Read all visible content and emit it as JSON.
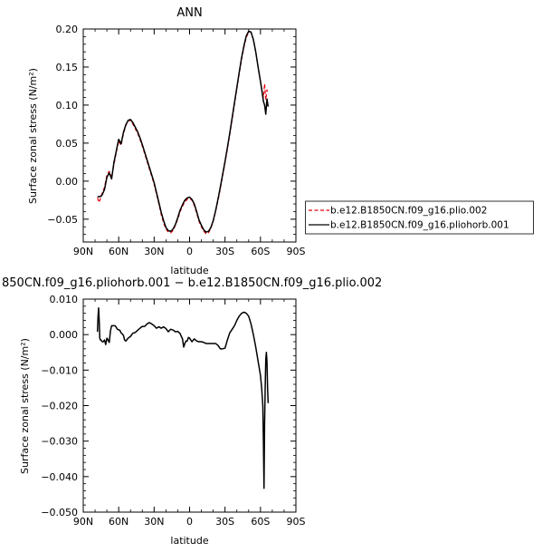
{
  "chart_data": [
    {
      "type": "line",
      "title": "ANN",
      "xlabel": "latitude",
      "ylabel": "Surface zonal stress (N/m²)",
      "xlim": [
        -90,
        90
      ],
      "ylim": [
        -0.08,
        0.2
      ],
      "xticks": [
        {
          "value": -90,
          "label": "90N"
        },
        {
          "value": -60,
          "label": "60N"
        },
        {
          "value": -30,
          "label": "30N"
        },
        {
          "value": 0,
          "label": "0"
        },
        {
          "value": 30,
          "label": "30S"
        },
        {
          "value": 60,
          "label": "60S"
        },
        {
          "value": 90,
          "label": "90S"
        }
      ],
      "yticks": [
        {
          "value": -0.05,
          "label": "−0.05"
        },
        {
          "value": 0.0,
          "label": "0.00"
        },
        {
          "value": 0.05,
          "label": "0.05"
        },
        {
          "value": 0.1,
          "label": "0.10"
        },
        {
          "value": 0.15,
          "label": "0.15"
        },
        {
          "value": 0.2,
          "label": "0.20"
        }
      ],
      "legend_position": "right",
      "series": [
        {
          "name": "b.e12.B1850CN.f09_g16.plio.002",
          "color": "#e8000b",
          "dash": "dashed",
          "x": [
            -78,
            -76.5,
            -75,
            -74,
            -72,
            -70,
            -68,
            -66,
            -64,
            -62,
            -60,
            -58,
            -56,
            -54,
            -52,
            -50,
            -48,
            -46,
            -44,
            -42,
            -40,
            -38,
            -36,
            -34,
            -32,
            -30,
            -28,
            -26,
            -24,
            -22,
            -20,
            -18,
            -16,
            -14,
            -12,
            -10,
            -8,
            -6,
            -4,
            -2,
            0,
            2,
            4,
            6,
            8,
            10,
            12,
            14,
            16,
            18,
            20,
            22,
            24,
            26,
            28,
            30,
            32,
            34,
            36,
            38,
            40,
            42,
            44,
            46,
            48,
            50,
            52,
            54,
            56,
            58,
            60,
            61.5,
            62.5,
            63.5,
            64.5,
            65.5,
            66.5
          ],
          "y": [
            -0.022,
            -0.028,
            -0.02,
            -0.016,
            -0.008,
            0.008,
            0.013,
            0.005,
            0.022,
            0.038,
            0.053,
            0.047,
            0.062,
            0.073,
            0.079,
            0.08,
            0.075,
            0.069,
            0.063,
            0.055,
            0.046,
            0.036,
            0.026,
            0.016,
            0.006,
            -0.004,
            -0.017,
            -0.03,
            -0.044,
            -0.055,
            -0.063,
            -0.067,
            -0.068,
            -0.065,
            -0.058,
            -0.05,
            -0.04,
            -0.033,
            -0.027,
            -0.024,
            -0.023,
            -0.025,
            -0.032,
            -0.042,
            -0.053,
            -0.06,
            -0.066,
            -0.069,
            -0.068,
            -0.062,
            -0.053,
            -0.04,
            -0.026,
            -0.01,
            0.007,
            0.024,
            0.042,
            0.061,
            0.081,
            0.101,
            0.121,
            0.141,
            0.16,
            0.176,
            0.189,
            0.196,
            0.196,
            0.186,
            0.17,
            0.15,
            0.132,
            0.118,
            0.11,
            0.128,
            0.107,
            0.12,
            0.115
          ]
        },
        {
          "name": "b.e12.B1850CN.f09_g16.pliohorb.001",
          "color": "#000000",
          "dash": "solid",
          "x": [
            -78,
            -76.5,
            -75,
            -74,
            -72,
            -70,
            -68,
            -66,
            -64,
            -62,
            -60,
            -58,
            -56,
            -54,
            -52,
            -50,
            -48,
            -46,
            -44,
            -42,
            -40,
            -38,
            -36,
            -34,
            -32,
            -30,
            -28,
            -26,
            -24,
            -22,
            -20,
            -18,
            -16,
            -14,
            -12,
            -10,
            -8,
            -6,
            -4,
            -2,
            0,
            2,
            4,
            6,
            8,
            10,
            12,
            14,
            16,
            18,
            20,
            22,
            24,
            26,
            28,
            30,
            32,
            34,
            36,
            38,
            40,
            42,
            44,
            46,
            48,
            50,
            52,
            54,
            56,
            58,
            60,
            61.5,
            62.5,
            63.5,
            64.5,
            65.5,
            66.5
          ],
          "y": [
            -0.021,
            -0.02,
            -0.02,
            -0.018,
            -0.011,
            0.005,
            0.011,
            0.003,
            0.025,
            0.04,
            0.055,
            0.049,
            0.064,
            0.074,
            0.08,
            0.081,
            0.077,
            0.071,
            0.065,
            0.057,
            0.048,
            0.038,
            0.028,
            0.018,
            0.008,
            -0.002,
            -0.015,
            -0.028,
            -0.041,
            -0.052,
            -0.061,
            -0.065,
            -0.066,
            -0.063,
            -0.057,
            -0.048,
            -0.038,
            -0.031,
            -0.025,
            -0.022,
            -0.021,
            -0.024,
            -0.03,
            -0.04,
            -0.051,
            -0.058,
            -0.064,
            -0.067,
            -0.066,
            -0.061,
            -0.052,
            -0.039,
            -0.024,
            -0.008,
            0.009,
            0.026,
            0.044,
            0.063,
            0.083,
            0.103,
            0.123,
            0.143,
            0.162,
            0.178,
            0.191,
            0.197,
            0.196,
            0.186,
            0.17,
            0.15,
            0.131,
            0.116,
            0.105,
            0.1,
            0.088,
            0.108,
            0.098
          ]
        }
      ]
    },
    {
      "type": "line",
      "title": "850CN.f09_g16.pliohorb.001 − b.e12.B1850CN.f09_g16.plio.002",
      "xlabel": "latitude",
      "ylabel": "Surface zonal stress (N/m²)",
      "xlim": [
        -90,
        90
      ],
      "ylim": [
        -0.05,
        0.01
      ],
      "xticks": [
        {
          "value": -90,
          "label": "90N"
        },
        {
          "value": -60,
          "label": "60N"
        },
        {
          "value": -30,
          "label": "30N"
        },
        {
          "value": 0,
          "label": "0"
        },
        {
          "value": 30,
          "label": "30S"
        },
        {
          "value": 60,
          "label": "60S"
        },
        {
          "value": 90,
          "label": "90S"
        }
      ],
      "yticks": [
        {
          "value": -0.05,
          "label": "−0.050"
        },
        {
          "value": -0.04,
          "label": "−0.040"
        },
        {
          "value": -0.03,
          "label": "−0.030"
        },
        {
          "value": -0.02,
          "label": "−0.020"
        },
        {
          "value": -0.01,
          "label": "−0.010"
        },
        {
          "value": 0.0,
          "label": "0.000"
        },
        {
          "value": 0.01,
          "label": "0.010"
        }
      ],
      "series": [
        {
          "color": "#000000",
          "dash": "solid",
          "x": [
            -78,
            -77.5,
            -77,
            -76.5,
            -76,
            -75.5,
            -75,
            -74,
            -73,
            -72,
            -71,
            -70.5,
            -70,
            -69,
            -68,
            -67,
            -66,
            -65,
            -63,
            -61,
            -59,
            -58,
            -57,
            -56,
            -55,
            -54,
            -52,
            -50,
            -48,
            -46,
            -44,
            -42,
            -40,
            -38,
            -36,
            -34,
            -32,
            -30,
            -28,
            -26,
            -24,
            -22,
            -20,
            -18,
            -16,
            -14,
            -12,
            -10,
            -8,
            -7,
            -6,
            -5,
            -4,
            -3,
            -2,
            -1,
            0,
            2,
            4,
            6,
            8,
            10,
            12,
            14,
            16,
            18,
            20,
            22,
            24,
            26,
            28,
            30,
            32,
            34,
            36,
            38,
            40,
            42,
            44,
            46,
            47,
            48,
            50,
            52,
            54,
            56,
            58,
            60,
            61,
            62,
            62.5,
            63,
            63.5,
            64,
            64.5,
            65,
            65.5,
            66,
            66.5
          ],
          "y": [
            0.0008,
            0.005,
            0.0075,
            0.004,
            -0.001,
            -0.0015,
            -0.0015,
            -0.002,
            -0.002,
            -0.0015,
            -0.0028,
            -0.002,
            -0.001,
            -0.0015,
            -0.0022,
            0.001,
            0.0025,
            0.0025,
            0.0025,
            0.0015,
            0.0012,
            0.0005,
            0.0002,
            -0.0002,
            -0.0015,
            -0.0018,
            -0.001,
            -0.0005,
            0.0004,
            0.0006,
            0.0012,
            0.0018,
            0.0023,
            0.0023,
            0.003,
            0.0034,
            0.003,
            0.0025,
            0.0018,
            0.0022,
            0.0018,
            0.0022,
            0.0017,
            0.0008,
            0.0015,
            0.0013,
            0.0008,
            0.0009,
            0.0003,
            -0.0005,
            -0.0012,
            -0.0035,
            -0.0025,
            -0.0018,
            -0.0018,
            -0.0008,
            -0.001,
            -0.002,
            -0.0012,
            -0.0018,
            -0.002,
            -0.002,
            -0.0022,
            -0.0025,
            -0.0025,
            -0.0025,
            -0.0025,
            -0.0025,
            -0.003,
            -0.004,
            -0.004,
            -0.0038,
            -0.0015,
            0.0005,
            0.0015,
            0.0025,
            0.004,
            0.0052,
            0.006,
            0.0063,
            0.0062,
            0.006,
            0.0052,
            0.003,
            0,
            -0.0035,
            -0.0075,
            -0.0115,
            -0.015,
            -0.02,
            -0.03,
            -0.0433,
            -0.025,
            -0.0148,
            -0.007,
            -0.005,
            -0.0075,
            -0.0148,
            -0.0193
          ]
        }
      ]
    }
  ]
}
